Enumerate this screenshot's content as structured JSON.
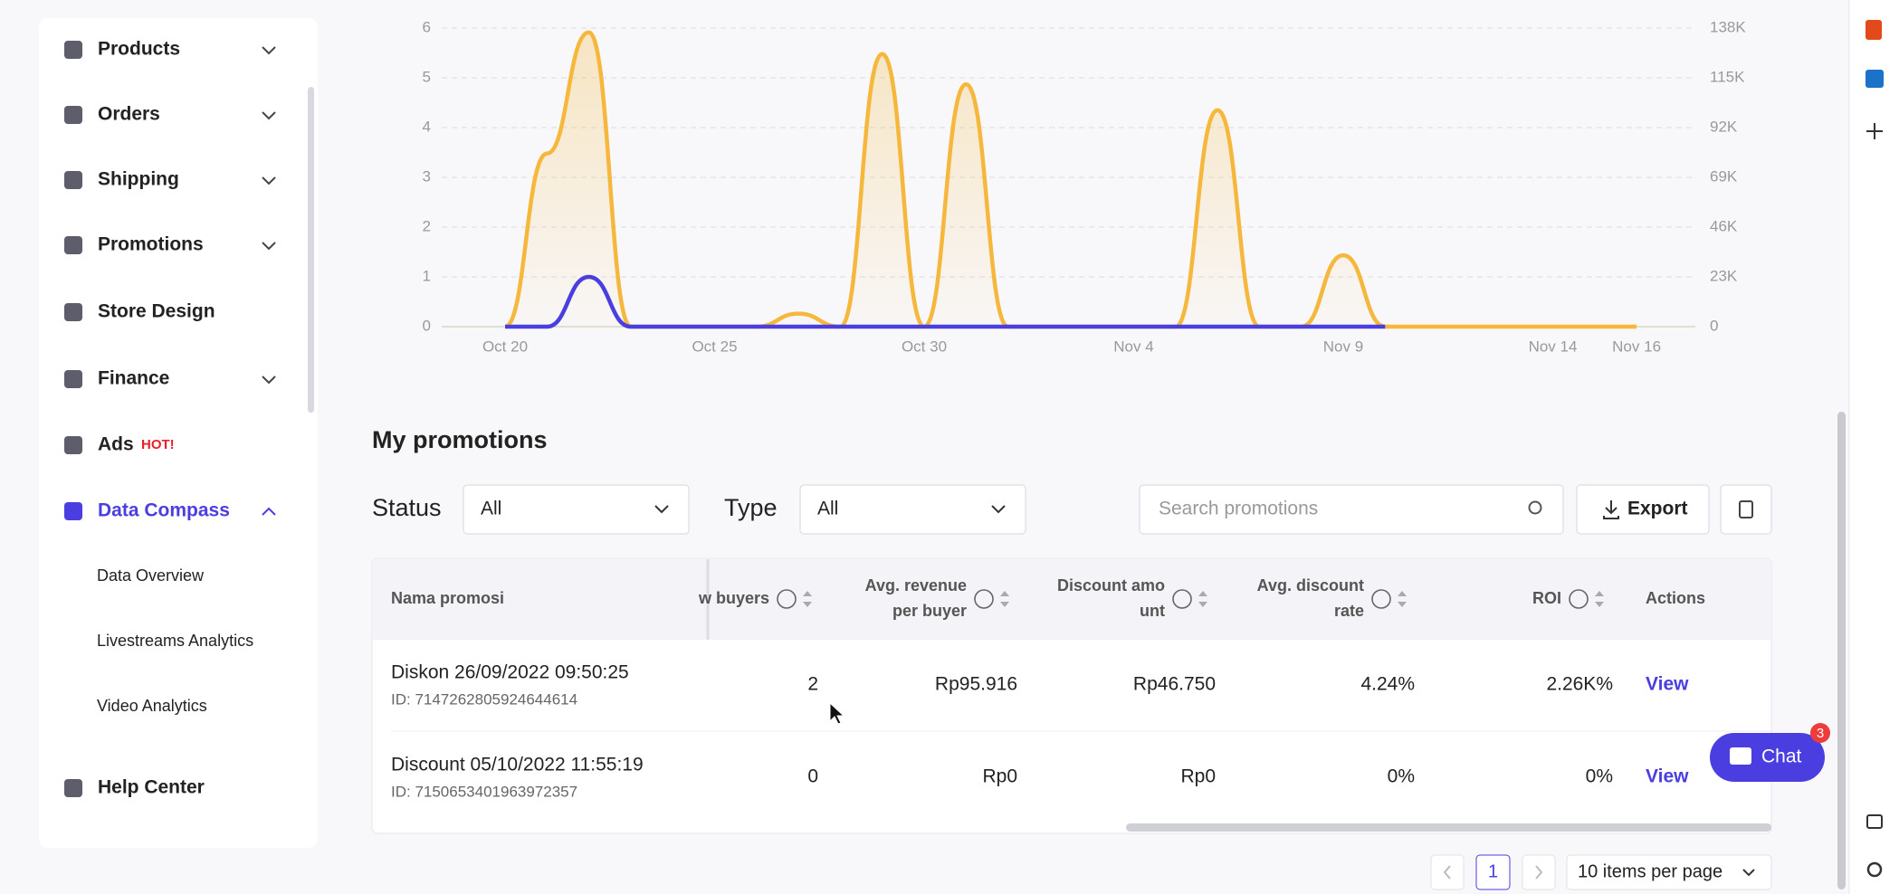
{
  "sidebar": {
    "items": [
      {
        "label": "Products"
      },
      {
        "label": "Orders"
      },
      {
        "label": "Shipping"
      },
      {
        "label": "Promotions"
      },
      {
        "label": "Store Design"
      },
      {
        "label": "Finance"
      },
      {
        "label": "Ads",
        "badge": "HOT!"
      },
      {
        "label": "Data Compass"
      }
    ],
    "subitems": [
      "Data Overview",
      "Livestreams Analytics",
      "Video Analytics"
    ],
    "help": "Help Center"
  },
  "chart_data": {
    "type": "line",
    "categories": [
      "Oct 20",
      null,
      null,
      null,
      null,
      "Oct 25",
      null,
      null,
      null,
      null,
      "Oct 30",
      null,
      null,
      null,
      null,
      "Nov 4",
      null,
      null,
      null,
      null,
      "Nov 9",
      null,
      null,
      null,
      null,
      "Nov 14",
      null,
      "Nov 16"
    ],
    "series": [
      {
        "color": "#f5b83d",
        "axis": "y2",
        "values": [
          0,
          80000,
          136000,
          0,
          0,
          0,
          0,
          6000,
          0,
          126000,
          0,
          112000,
          0,
          0,
          0,
          0,
          0,
          100000,
          0,
          0,
          33000,
          0,
          0,
          0,
          0,
          0,
          0,
          0
        ]
      },
      {
        "color": "#4a3ee0",
        "values": [
          0,
          0,
          1,
          0,
          0,
          0,
          0,
          0,
          0,
          0,
          0,
          0,
          0,
          0,
          0,
          0,
          0,
          0,
          0,
          0,
          0,
          0,
          null,
          null,
          null,
          null,
          null,
          null
        ]
      }
    ],
    "ylim": [
      0,
      6
    ],
    "yticks": [
      0,
      1,
      2,
      3,
      4,
      5,
      6
    ],
    "y2lim": [
      0,
      138000
    ],
    "y2ticks": [
      0,
      {
        "value": 23000,
        "label": "23K"
      },
      {
        "value": 46000,
        "label": "46K"
      },
      {
        "value": 69000,
        "label": "69K"
      },
      {
        "value": 92000,
        "label": "92K"
      },
      {
        "value": 115000,
        "label": "115K"
      },
      {
        "value": 138000,
        "label": "138K"
      }
    ],
    "grid": true
  },
  "promotions": {
    "title": "My promotions",
    "status_label": "Status",
    "status_value": "All",
    "type_label": "Type",
    "type_value": "All",
    "search_placeholder": "Search promotions",
    "export": "Export",
    "columns": [
      [
        "Nama promosi"
      ],
      [
        "w buyers"
      ],
      [
        "Avg. revenue",
        "per buyer"
      ],
      [
        "Discount amo",
        "unt"
      ],
      [
        "Avg. discount",
        "rate"
      ],
      [
        "ROI"
      ],
      [
        "Actions"
      ]
    ],
    "rows": [
      {
        "name": "Diskon 26/09/2022 09:50:25",
        "id": "ID: 7147262805924644614",
        "cells": [
          "2",
          "Rp95.916",
          "Rp46.750",
          "4.24%",
          "2.26K%"
        ],
        "action": "View"
      },
      {
        "name": "Discount 05/10/2022 11:55:19",
        "id": "ID: 7150653401963972357",
        "cells": [
          "0",
          "Rp0",
          "Rp0",
          "0%",
          "0%"
        ],
        "action": "View"
      }
    ],
    "page": "1",
    "items_per_page": "10 items per page"
  },
  "chat": {
    "label": "Chat",
    "badge": "3"
  }
}
